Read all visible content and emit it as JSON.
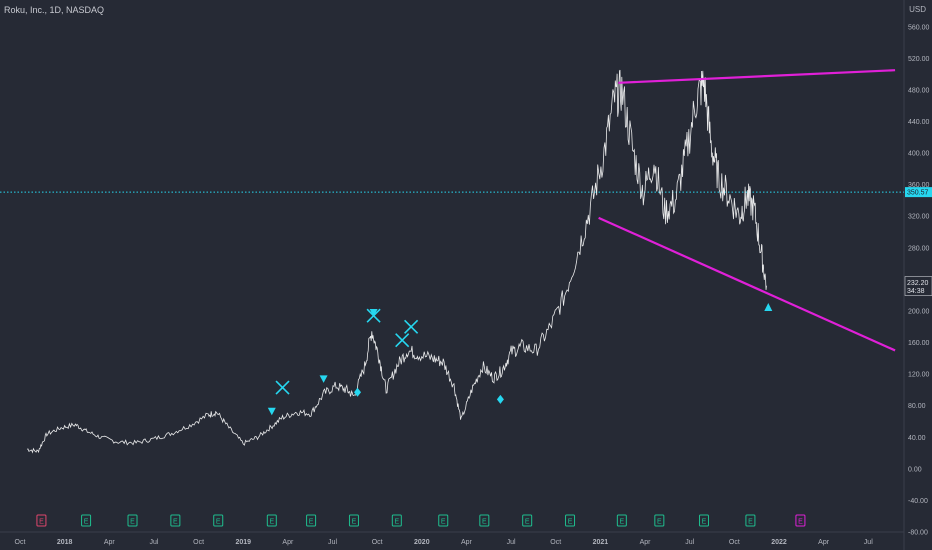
{
  "header": {
    "title": "Roku, Inc., 1D, NASDAQ",
    "currency": "USD"
  },
  "colors": {
    "background": "#262a35",
    "price": "#ffffff",
    "trendline": "#e020d8",
    "level": "#26d7f0",
    "signal": "#26d7f0",
    "earnings": "#1fbf8f",
    "earnings_future": "#e020d8",
    "dividend": "#e0476d"
  },
  "chart_data": {
    "type": "line",
    "title": "Roku, Inc., 1D, NASDAQ",
    "ylabel": "USD",
    "ylim": [
      -80,
      580
    ],
    "y_ticks": [
      "560.00",
      "520.00",
      "480.00",
      "440.00",
      "400.00",
      "360.00",
      "320.00",
      "280.00",
      "240.00",
      "200.00",
      "160.00",
      "120.00",
      "80.00",
      "40.00",
      "0.00",
      "-40.00",
      "-80.00"
    ],
    "x_ticks": [
      "Oct",
      "2018",
      "Apr",
      "Jul",
      "Oct",
      "2019",
      "Apr",
      "Jul",
      "Oct",
      "2020",
      "Apr",
      "Jul",
      "Oct",
      "2021",
      "Apr",
      "Jul",
      "Oct",
      "2022",
      "Apr",
      "Jul"
    ],
    "series": [
      {
        "values": [
          [
            2017.79,
            25
          ],
          [
            2017.85,
            22
          ],
          [
            2017.9,
            44
          ],
          [
            2017.98,
            52
          ],
          [
            2018.06,
            56
          ],
          [
            2018.12,
            48
          ],
          [
            2018.2,
            40
          ],
          [
            2018.3,
            34
          ],
          [
            2018.4,
            33
          ],
          [
            2018.5,
            38
          ],
          [
            2018.6,
            45
          ],
          [
            2018.7,
            55
          ],
          [
            2018.8,
            68
          ],
          [
            2018.85,
            72
          ],
          [
            2018.92,
            52
          ],
          [
            2019.0,
            32
          ],
          [
            2019.08,
            40
          ],
          [
            2019.15,
            52
          ],
          [
            2019.22,
            65
          ],
          [
            2019.3,
            72
          ],
          [
            2019.38,
            70
          ],
          [
            2019.45,
            95
          ],
          [
            2019.52,
            105
          ],
          [
            2019.58,
            100
          ],
          [
            2019.62,
            92
          ],
          [
            2019.68,
            130
          ],
          [
            2019.72,
            175
          ],
          [
            2019.76,
            142
          ],
          [
            2019.8,
            100
          ],
          [
            2019.86,
            130
          ],
          [
            2019.92,
            150
          ],
          [
            2019.98,
            145
          ],
          [
            2020.06,
            140
          ],
          [
            2020.12,
            135
          ],
          [
            2020.18,
            105
          ],
          [
            2020.22,
            62
          ],
          [
            2020.28,
            100
          ],
          [
            2020.34,
            130
          ],
          [
            2020.4,
            115
          ],
          [
            2020.45,
            125
          ],
          [
            2020.5,
            148
          ],
          [
            2020.56,
            155
          ],
          [
            2020.64,
            150
          ],
          [
            2020.72,
            180
          ],
          [
            2020.8,
            220
          ],
          [
            2020.88,
            280
          ],
          [
            2020.95,
            335
          ],
          [
            2021.02,
            400
          ],
          [
            2021.08,
            470
          ],
          [
            2021.12,
            480
          ],
          [
            2021.18,
            405
          ],
          [
            2021.24,
            350
          ],
          [
            2021.3,
            390
          ],
          [
            2021.36,
            325
          ],
          [
            2021.42,
            340
          ],
          [
            2021.48,
            400
          ],
          [
            2021.54,
            470
          ],
          [
            2021.58,
            490
          ],
          [
            2021.62,
            410
          ],
          [
            2021.66,
            370
          ],
          [
            2021.72,
            345
          ],
          [
            2021.78,
            320
          ],
          [
            2021.82,
            345
          ],
          [
            2021.86,
            330
          ],
          [
            2021.9,
            275
          ],
          [
            2021.93,
            232
          ]
        ]
      }
    ],
    "horizontal_line": {
      "value": 350.57,
      "label": "350.57"
    },
    "trendlines": [
      {
        "from": [
          2021.1,
          489
        ],
        "to": [
          2022.65,
          505
        ]
      },
      {
        "from": [
          2020.99,
          318
        ],
        "to": [
          2022.65,
          150
        ]
      }
    ],
    "last_price": {
      "value": 232.2,
      "label": "232.20",
      "countdown": "34:38"
    },
    "markers": [
      {
        "shape": "x",
        "x": 2019.22,
        "y": 103
      },
      {
        "shape": "triangle-down",
        "x": 2019.16,
        "y": 73
      },
      {
        "shape": "triangle-down",
        "x": 2019.45,
        "y": 114
      },
      {
        "shape": "diamond",
        "x": 2019.64,
        "y": 97
      },
      {
        "shape": "x",
        "x": 2019.73,
        "y": 194
      },
      {
        "shape": "triangle-down",
        "x": 2019.73,
        "y": 198
      },
      {
        "shape": "x",
        "x": 2019.89,
        "y": 163
      },
      {
        "shape": "x",
        "x": 2019.94,
        "y": 180
      },
      {
        "shape": "diamond",
        "x": 2020.44,
        "y": 88
      },
      {
        "shape": "triangle-up",
        "x": 2021.94,
        "y": 205
      }
    ],
    "events": [
      {
        "x": 2017.87,
        "label": "E",
        "kind": "dividend"
      },
      {
        "x": 2018.12,
        "label": "E",
        "kind": "earnings"
      },
      {
        "x": 2018.38,
        "label": "E",
        "kind": "earnings"
      },
      {
        "x": 2018.62,
        "label": "E",
        "kind": "earnings"
      },
      {
        "x": 2018.86,
        "label": "E",
        "kind": "earnings"
      },
      {
        "x": 2019.16,
        "label": "E",
        "kind": "earnings"
      },
      {
        "x": 2019.38,
        "label": "E",
        "kind": "earnings"
      },
      {
        "x": 2019.62,
        "label": "E",
        "kind": "earnings"
      },
      {
        "x": 2019.86,
        "label": "E",
        "kind": "earnings"
      },
      {
        "x": 2020.12,
        "label": "E",
        "kind": "earnings"
      },
      {
        "x": 2020.35,
        "label": "E",
        "kind": "earnings"
      },
      {
        "x": 2020.59,
        "label": "E",
        "kind": "earnings"
      },
      {
        "x": 2020.83,
        "label": "E",
        "kind": "earnings"
      },
      {
        "x": 2021.12,
        "label": "E",
        "kind": "earnings"
      },
      {
        "x": 2021.33,
        "label": "E",
        "kind": "earnings"
      },
      {
        "x": 2021.58,
        "label": "E",
        "kind": "earnings"
      },
      {
        "x": 2021.84,
        "label": "E",
        "kind": "earnings"
      },
      {
        "x": 2022.12,
        "label": "E",
        "kind": "earnings_future"
      }
    ]
  }
}
